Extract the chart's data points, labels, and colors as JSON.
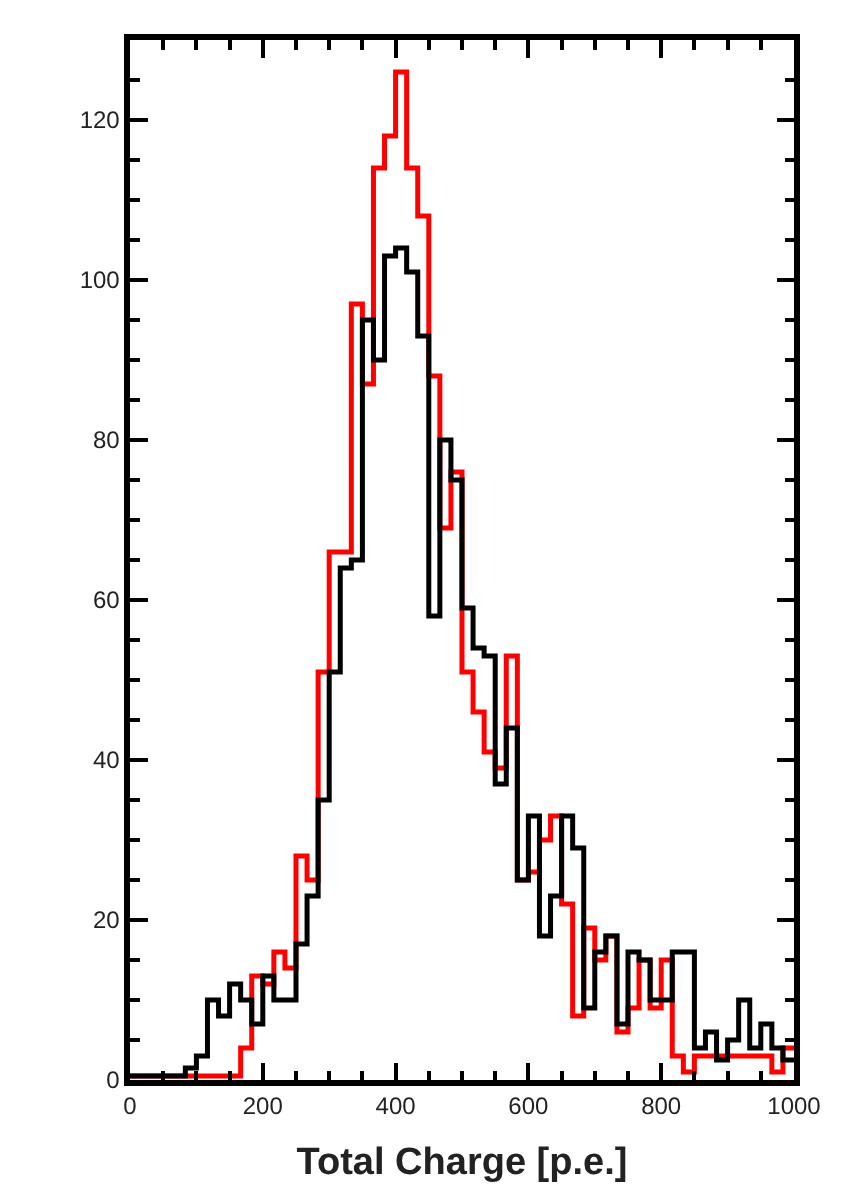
{
  "chart_data": {
    "type": "histogram",
    "xlabel": "Total Charge [p.e.]",
    "bins": [
      0,
      16.67,
      33.33,
      50,
      66.67,
      83.33,
      100,
      116.67,
      133.33,
      150,
      166.67,
      183.33,
      200,
      216.67,
      233.33,
      250,
      266.67,
      283.33,
      300,
      316.67,
      333.33,
      350,
      366.67,
      383.33,
      400,
      416.67,
      433.33,
      450,
      466.67,
      483.33,
      500,
      516.67,
      533.33,
      550,
      566.67,
      583.33,
      600,
      616.67,
      633.33,
      650,
      666.67,
      683.33,
      700,
      716.67,
      733.33,
      750,
      766.67,
      783.33,
      800,
      816.67,
      833.33,
      850,
      866.67,
      883.33,
      900,
      916.67,
      933.33,
      950,
      966.67,
      983.33,
      1000
    ],
    "series": [
      {
        "color": "#ff0000",
        "values": [
          0.5,
          0.5,
          0.5,
          0.5,
          0.5,
          0.5,
          0.5,
          0.5,
          0.5,
          0.5,
          4,
          13,
          12,
          16,
          14,
          28,
          25,
          51,
          66,
          66,
          97,
          87,
          114,
          118,
          126,
          114,
          108,
          88,
          69,
          76,
          51,
          46,
          41,
          39,
          53,
          25,
          26,
          30,
          33,
          22,
          8,
          19,
          15,
          18,
          6,
          9,
          15,
          9,
          15,
          3,
          1,
          3,
          3,
          3,
          3,
          3,
          3,
          3,
          1,
          4
        ]
      },
      {
        "color": "#000000",
        "values": [
          0.5,
          0.5,
          0.5,
          0.5,
          0.5,
          1.5,
          3,
          10,
          8,
          12,
          10,
          7,
          13,
          10,
          10,
          17,
          23,
          35,
          51,
          64,
          65,
          95,
          90,
          103,
          104,
          101,
          93,
          58,
          80,
          75,
          59,
          54,
          53,
          37,
          44,
          25,
          33,
          18,
          23,
          33,
          29,
          9,
          16,
          18,
          7,
          16,
          15,
          10,
          10,
          16,
          16,
          4,
          6,
          2.5,
          5,
          10,
          4,
          7,
          4,
          2.5
        ]
      }
    ],
    "xlim": [
      0,
      1000
    ],
    "ylim": [
      0,
      130
    ],
    "xticks": [
      0,
      {
        "value": 50,
        "label": null
      },
      200,
      {
        "value": 100,
        "label": null
      },
      {
        "value": 150,
        "label": null
      },
      {
        "value": 250,
        "label": null
      },
      {
        "value": 300,
        "label": null
      },
      {
        "value": 350,
        "label": null
      },
      400,
      {
        "value": 450,
        "label": null
      },
      {
        "value": 500,
        "label": null
      },
      {
        "value": 550,
        "label": null
      },
      600,
      {
        "value": 650,
        "label": null
      },
      {
        "value": 700,
        "label": null
      },
      {
        "value": 750,
        "label": null
      },
      800,
      {
        "value": 850,
        "label": null
      },
      {
        "value": 900,
        "label": null
      },
      {
        "value": 950,
        "label": null
      },
      1000
    ],
    "yticks": [
      0,
      {
        "value": 5,
        "label": null
      },
      {
        "value": 10,
        "label": null
      },
      {
        "value": 15,
        "label": null
      },
      20,
      {
        "value": 25,
        "label": null
      },
      {
        "value": 30,
        "label": null
      },
      {
        "value": 35,
        "label": null
      },
      40,
      {
        "value": 45,
        "label": null
      },
      {
        "value": 50,
        "label": null
      },
      {
        "value": 55,
        "label": null
      },
      60,
      {
        "value": 65,
        "label": null
      },
      {
        "value": 70,
        "label": null
      },
      {
        "value": 75,
        "label": null
      },
      80,
      {
        "value": 85,
        "label": null
      },
      {
        "value": 90,
        "label": null
      },
      {
        "value": 95,
        "label": null
      },
      100,
      {
        "value": 105,
        "label": null
      },
      {
        "value": 110,
        "label": null
      },
      {
        "value": 115,
        "label": null
      },
      120,
      {
        "value": 125,
        "label": null
      }
    ],
    "tick_labels": true
  }
}
